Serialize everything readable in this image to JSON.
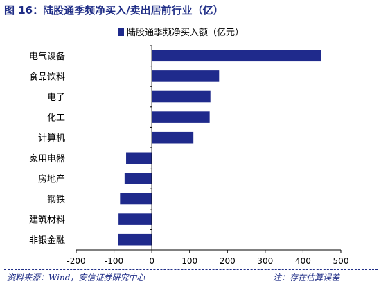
{
  "figure": {
    "title": "图 16：陆股通季频净买入/卖出居前行业（亿）",
    "source": "资料来源：Wind，安信证券研究中心",
    "note": "注：存在估算误差"
  },
  "colors": {
    "accent": "#1f2d86",
    "bar": "#1f2a8c",
    "axis": "#000000"
  },
  "chart_data": {
    "type": "bar",
    "orientation": "horizontal",
    "categories": [
      "电气设备",
      "食品饮料",
      "电子",
      "化工",
      "计算机",
      "家用电器",
      "房地产",
      "钢铁",
      "建筑材料",
      "非银金融"
    ],
    "series": [
      {
        "name": "陆股通季频净买入额（亿元）",
        "values": [
          448,
          178,
          155,
          153,
          110,
          -68,
          -72,
          -84,
          -88,
          -90
        ]
      }
    ],
    "xlim": [
      -200,
      500
    ],
    "xticks": [
      -200,
      -100,
      0,
      100,
      200,
      300,
      400,
      500
    ],
    "xtick_labels": [
      "-200",
      "-100",
      "0",
      "100",
      "200",
      "300",
      "400",
      "500"
    ],
    "legend_position": "top",
    "grid": false
  }
}
